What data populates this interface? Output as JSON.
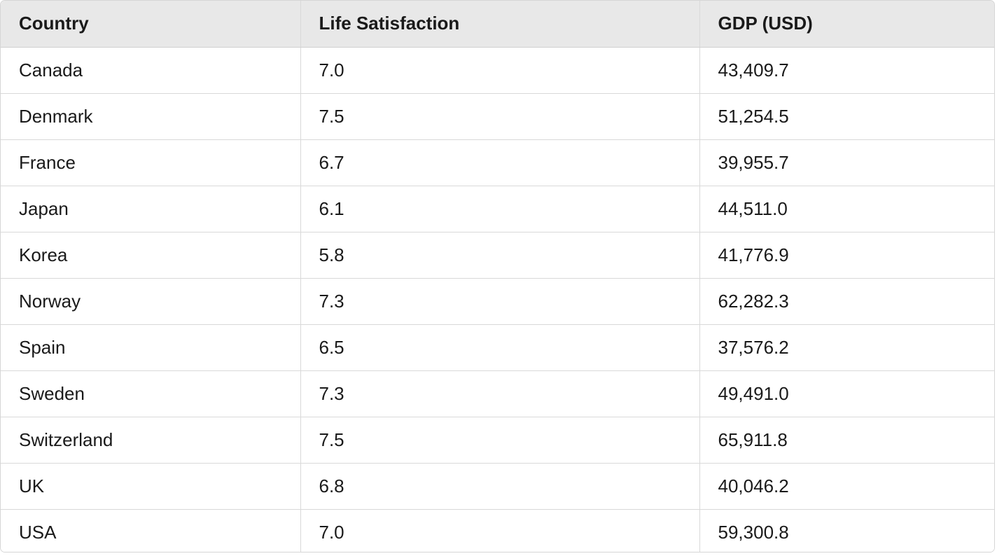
{
  "table": {
    "headers": [
      "Country",
      "Life Satisfaction",
      "GDP (USD)"
    ]
  },
  "chart_data": {
    "type": "table",
    "columns": [
      "Country",
      "Life Satisfaction",
      "GDP (USD)"
    ],
    "rows": [
      [
        "Canada",
        "7.0",
        "43,409.7"
      ],
      [
        "Denmark",
        "7.5",
        "51,254.5"
      ],
      [
        "France",
        "6.7",
        "39,955.7"
      ],
      [
        "Japan",
        "6.1",
        "44,511.0"
      ],
      [
        "Korea",
        "5.8",
        "41,776.9"
      ],
      [
        "Norway",
        "7.3",
        "62,282.3"
      ],
      [
        "Spain",
        "6.5",
        "37,576.2"
      ],
      [
        "Sweden",
        "7.3",
        "49,491.0"
      ],
      [
        "Switzerland",
        "7.5",
        "65,911.8"
      ],
      [
        "UK",
        "6.8",
        "40,046.2"
      ],
      [
        "USA",
        "7.0",
        "59,300.8"
      ]
    ]
  }
}
